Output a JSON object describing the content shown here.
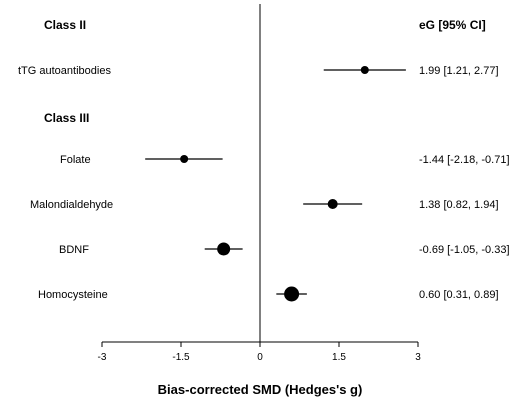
{
  "chart_data": {
    "type": "forest",
    "xlabel": "Bias-corrected SMD (Hedges's g)",
    "effect_header": "eG [95% CI]",
    "xlim": [
      -3,
      3
    ],
    "xticks": [
      "-3",
      "-1.5",
      "0",
      "1.5",
      "3"
    ],
    "xtick_values": [
      -3,
      -1.5,
      0,
      1.5,
      3
    ],
    "reference_line": 0,
    "groups": [
      {
        "title": "Class II",
        "rows": [
          {
            "label": "tTG autoantibodies",
            "estimate": 1.99,
            "lower": 1.21,
            "upper": 2.77,
            "text": "1.99 [1.21, 2.77]",
            "weight": "small"
          }
        ]
      },
      {
        "title": "Class III",
        "rows": [
          {
            "label": "Folate",
            "estimate": -1.44,
            "lower": -2.18,
            "upper": -0.71,
            "text": "-1.44 [-2.18, -0.71]",
            "weight": "small"
          },
          {
            "label": "Malondialdehyde",
            "estimate": 1.38,
            "lower": 0.82,
            "upper": 1.94,
            "text": "1.38 [0.82, 1.94]",
            "weight": "medium"
          },
          {
            "label": "BDNF",
            "estimate": -0.69,
            "lower": -1.05,
            "upper": -0.33,
            "text": "-0.69 [-1.05, -0.33]",
            "weight": "large"
          },
          {
            "label": "Homocysteine",
            "estimate": 0.6,
            "lower": 0.31,
            "upper": 0.89,
            "text": "0.60 [0.31, 0.89]",
            "weight": "xlarge"
          }
        ]
      }
    ],
    "colors": {
      "marker": "#000000",
      "axis": "#000000",
      "background": "#ffffff"
    }
  }
}
